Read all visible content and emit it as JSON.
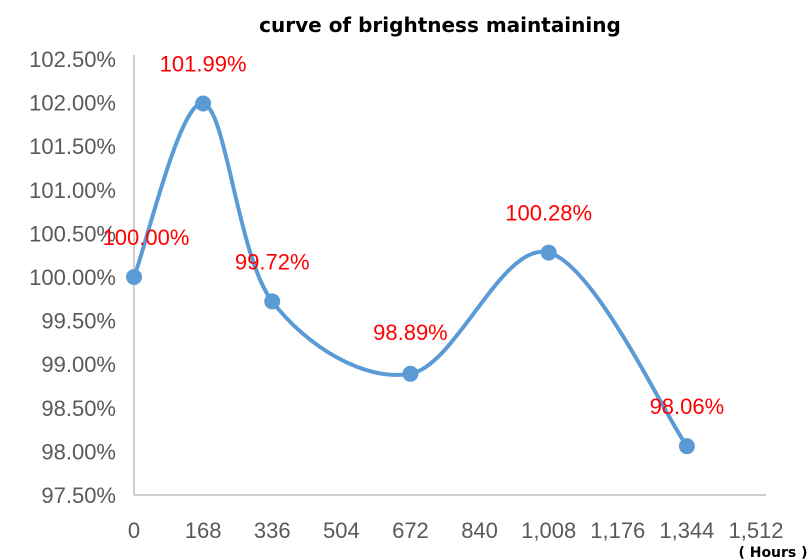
{
  "chart_data": {
    "type": "line",
    "title": "curve of brightness maintaining",
    "x_unit_label": "( Hours )",
    "x_ticks": [
      "0",
      "168",
      "336",
      "504",
      "672",
      "840",
      "1,008",
      "1,176",
      "1,344",
      "1,512"
    ],
    "x_tick_values": [
      0,
      168,
      336,
      504,
      672,
      840,
      1008,
      1176,
      1344,
      1512
    ],
    "y_ticks": [
      "97.50%",
      "98.00%",
      "98.50%",
      "99.00%",
      "99.50%",
      "100.00%",
      "100.50%",
      "101.00%",
      "101.50%",
      "102.00%",
      "102.50%"
    ],
    "y_tick_values": [
      97.5,
      98.0,
      98.5,
      99.0,
      99.5,
      100.0,
      100.5,
      101.0,
      101.5,
      102.0,
      102.5
    ],
    "xlim": [
      0,
      1512
    ],
    "ylim": [
      97.5,
      102.5
    ],
    "smooth": true,
    "grid": false,
    "series": [
      {
        "color": "#5b9bd5",
        "x": [
          0,
          168,
          336,
          672,
          1008,
          1344
        ],
        "y": [
          100.0,
          101.99,
          99.72,
          98.89,
          100.28,
          98.06
        ],
        "labels": [
          "100.00%",
          "101.99%",
          "99.72%",
          "98.89%",
          "100.28%",
          "98.06%"
        ]
      }
    ],
    "label_color": "#ff0000"
  }
}
